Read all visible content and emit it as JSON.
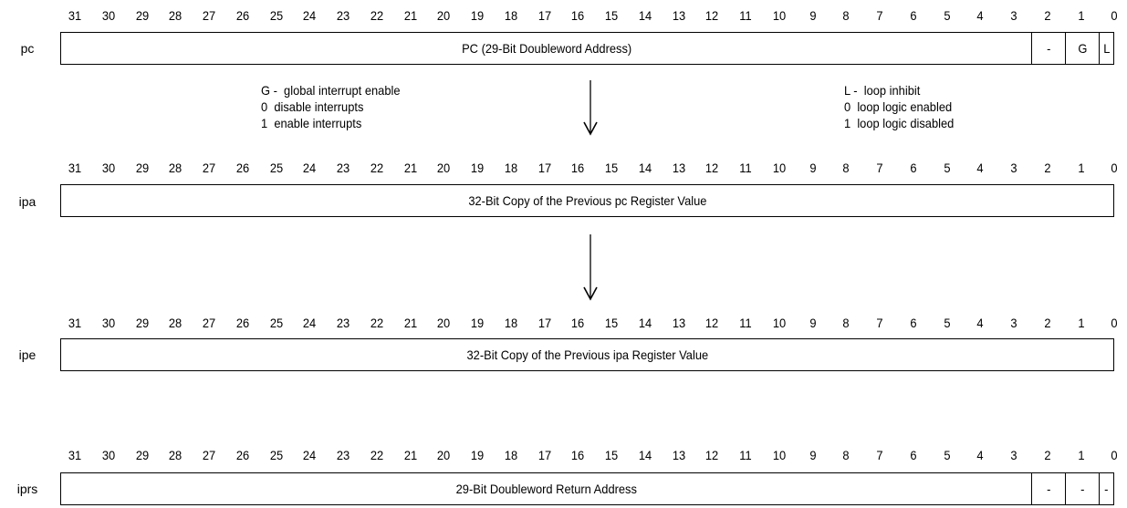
{
  "bit_numbers": [
    "31",
    "30",
    "29",
    "28",
    "27",
    "26",
    "25",
    "24",
    "23",
    "22",
    "21",
    "20",
    "19",
    "18",
    "17",
    "16",
    "15",
    "14",
    "13",
    "12",
    "11",
    "10",
    "9",
    "8",
    "7",
    "6",
    "5",
    "4",
    "3",
    "2",
    "1",
    "0"
  ],
  "registers": [
    {
      "id": "pc",
      "label": "pc",
      "fields": [
        {
          "text": "PC (29-Bit Doubleword Address)",
          "from": 31,
          "to": 3
        },
        {
          "text": "-",
          "from": 2,
          "to": 2
        },
        {
          "text": "G",
          "from": 1,
          "to": 1
        },
        {
          "text": "L",
          "from": 0,
          "to": 0
        }
      ]
    },
    {
      "id": "ipa",
      "label": "ipa",
      "fields": [
        {
          "text": "32-Bit Copy of the Previous pc Register Value",
          "from": 31,
          "to": 0
        }
      ]
    },
    {
      "id": "ipe",
      "label": "ipe",
      "fields": [
        {
          "text": "32-Bit Copy of the Previous ipa Register Value",
          "from": 31,
          "to": 0
        }
      ]
    },
    {
      "id": "iprs",
      "label": "iprs",
      "fields": [
        {
          "text": "29-Bit Doubleword Return Address",
          "from": 31,
          "to": 3
        },
        {
          "text": "-",
          "from": 2,
          "to": 2
        },
        {
          "text": "-",
          "from": 1,
          "to": 1
        },
        {
          "text": "-",
          "from": 0,
          "to": 0
        }
      ]
    }
  ],
  "notes": {
    "g_bit": {
      "title": "G -  global interrupt enable",
      "line0": "0  disable interrupts",
      "line1": "1  enable interrupts"
    },
    "l_bit": {
      "title": "L -  loop inhibit",
      "line0": "0  loop logic enabled",
      "line1": "1  loop logic disabled"
    }
  },
  "arrow_icon": "down-arrow-icon"
}
